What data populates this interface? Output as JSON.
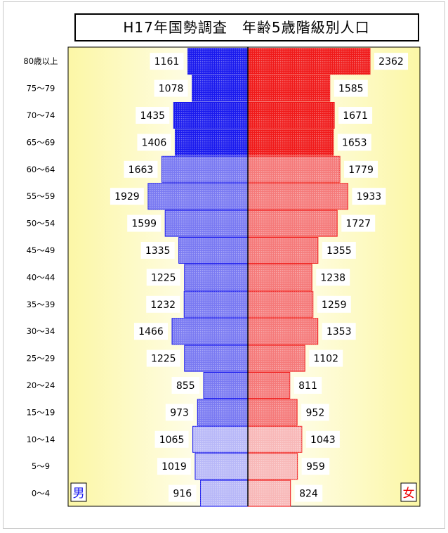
{
  "chart_data": {
    "type": "bar",
    "title": "H17年国勢調査　年齢5歳階級別人口",
    "categories": [
      "80歳以上",
      "75～79",
      "70～74",
      "65～69",
      "60～64",
      "55～59",
      "50～54",
      "45～49",
      "40～44",
      "35～39",
      "30～34",
      "25～29",
      "20～24",
      "15～19",
      "10～14",
      "5～9",
      "0～4"
    ],
    "series": [
      {
        "name": "男",
        "values": [
          1161,
          1078,
          1435,
          1406,
          1663,
          1929,
          1599,
          1335,
          1225,
          1232,
          1466,
          1225,
          855,
          973,
          1065,
          1019,
          916
        ]
      },
      {
        "name": "女",
        "values": [
          2362,
          1585,
          1671,
          1653,
          1779,
          1933,
          1727,
          1355,
          1238,
          1259,
          1353,
          1102,
          811,
          952,
          1043,
          959,
          824
        ]
      }
    ],
    "xlim": [
      -2700,
      2700
    ],
    "legend_placement": "bottom-corners",
    "grid": false
  },
  "colors": {
    "male_dark": "#1a1aee",
    "male_mid": "#7a7af2",
    "male_light": "#b8b8f8",
    "female_dark": "#f01a1a",
    "female_mid": "#f57a7a",
    "female_light": "#f8b8b8",
    "male_label": "#1a1aee",
    "female_label": "#ee0000"
  }
}
